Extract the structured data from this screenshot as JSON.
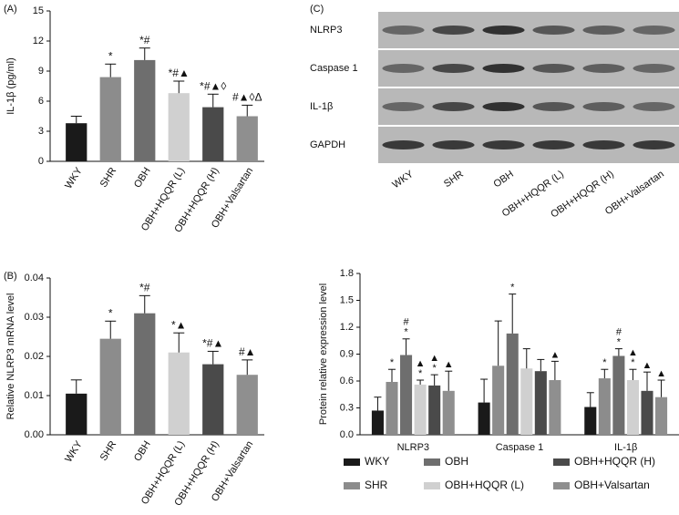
{
  "chart_data": [
    {
      "type": "bar",
      "panel_label": "(A)",
      "y_label": "IL-1β (pg/ml)",
      "categories": [
        "WKY",
        "SHR",
        "OBH",
        "OBH+HQQR (L)",
        "OBH+HQQR (H)",
        "OBH+Valsartan"
      ],
      "values": [
        3.8,
        8.4,
        10.1,
        6.8,
        5.4,
        4.5
      ],
      "errors": [
        0.7,
        1.3,
        1.2,
        1.2,
        1.3,
        1.1
      ],
      "annotations": [
        null,
        "*",
        "*#",
        "*#▲",
        "*#▲◊",
        "#▲◊Δ"
      ],
      "colors": [
        "#1a1a1a",
        "#8c8c8c",
        "#6e6e6e",
        "#d0d0d0",
        "#4a4a4a",
        "#8f8f8f"
      ],
      "ylim": [
        0,
        15
      ],
      "yticks": [
        0,
        3,
        6,
        9,
        12,
        15
      ]
    },
    {
      "type": "bar",
      "panel_label": "(B)",
      "y_label": "Relative NLRP3 mRNA level",
      "categories": [
        "WKY",
        "SHR",
        "OBH",
        "OBH+HQQR (L)",
        "OBH+HQQR (H)",
        "OBH+Valsartan"
      ],
      "values": [
        0.0105,
        0.0245,
        0.031,
        0.021,
        0.018,
        0.0153
      ],
      "errors": [
        0.0035,
        0.0045,
        0.0045,
        0.005,
        0.0033,
        0.0038
      ],
      "annotations": [
        null,
        "*",
        "*#",
        "*▲",
        "*#▲",
        "#▲"
      ],
      "colors": [
        "#1a1a1a",
        "#8c8c8c",
        "#6e6e6e",
        "#d0d0d0",
        "#4a4a4a",
        "#8f8f8f"
      ],
      "ylim": [
        0,
        0.04
      ],
      "yticks": [
        {
          "value": 0,
          "label": "0.00"
        },
        0.01,
        0.02,
        0.03,
        0.04
      ]
    },
    {
      "type": "blot",
      "panel_label": "(C)",
      "bands": [
        "NLRP3",
        "Caspase 1",
        "IL-1β",
        "GAPDH"
      ],
      "lanes": [
        "WKY",
        "SHR",
        "OBH",
        "OBH+HQQR (L)",
        "OBH+HQQR (H)",
        "OBH+Valsartan"
      ]
    },
    {
      "type": "grouped_bar",
      "y_label": "Protein relative expression level",
      "categories": [
        "NLRP3",
        "Caspase 1",
        "IL-1β"
      ],
      "ylim": [
        0,
        1.8
      ],
      "yticks": [
        {
          "value": 0,
          "label": "0.0"
        },
        0.3,
        0.6,
        0.9,
        1.2,
        1.5,
        1.8
      ],
      "legend": "bottom",
      "series": [
        {
          "name": "WKY",
          "color": "#1a1a1a",
          "values": [
            0.27,
            0.36,
            0.31
          ],
          "errors": [
            0.15,
            0.26,
            0.16
          ],
          "annotations": [
            null,
            null,
            null
          ]
        },
        {
          "name": "SHR",
          "color": "#8c8c8c",
          "values": [
            0.59,
            0.77,
            0.63
          ],
          "errors": [
            0.14,
            0.5,
            0.1
          ],
          "annotations": [
            [
              "*"
            ],
            null,
            [
              "*"
            ]
          ]
        },
        {
          "name": "OBH",
          "color": "#6e6e6e",
          "values": [
            0.89,
            1.13,
            0.88
          ],
          "errors": [
            0.18,
            0.44,
            0.08
          ],
          "annotations": [
            [
              "#",
              "*"
            ],
            [
              "*"
            ],
            [
              "#",
              "*"
            ]
          ]
        },
        {
          "name": "OBH+HQQR (L)",
          "color": "#d0d0d0",
          "values": [
            0.56,
            0.74,
            0.61
          ],
          "errors": [
            0.05,
            0.22,
            0.12
          ],
          "annotations": [
            [
              "▲",
              "*"
            ],
            null,
            [
              "▲",
              "*"
            ]
          ]
        },
        {
          "name": "OBH+HQQR (H)",
          "color": "#4a4a4a",
          "values": [
            0.55,
            0.71,
            0.49
          ],
          "errors": [
            0.12,
            0.13,
            0.21
          ],
          "annotations": [
            [
              "▲",
              "*"
            ],
            null,
            [
              "▲"
            ]
          ]
        },
        {
          "name": "OBH+Valsartan",
          "color": "#8f8f8f",
          "values": [
            0.49,
            0.61,
            0.42
          ],
          "errors": [
            0.22,
            0.21,
            0.19
          ],
          "annotations": [
            [
              "▲"
            ],
            [
              "▲"
            ],
            [
              "▲"
            ]
          ]
        }
      ]
    }
  ]
}
